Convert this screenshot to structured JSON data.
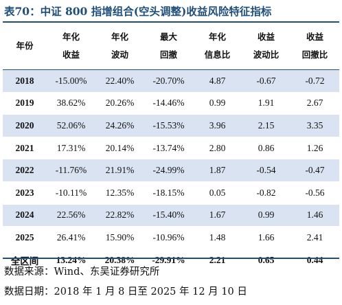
{
  "title": "表70：中证 800 指增组合(空头调整)收益风险特征指标",
  "columns": [
    {
      "line1": "年份",
      "line2": ""
    },
    {
      "line1": "年化",
      "line2": "收益"
    },
    {
      "line1": "年化",
      "line2": "波动"
    },
    {
      "line1": "最大",
      "line2": "回撤"
    },
    {
      "line1": "年化",
      "line2": "信息比"
    },
    {
      "line1": "收益",
      "line2": "波动比"
    },
    {
      "line1": "收益",
      "line2": "回撤比"
    }
  ],
  "rows": [
    [
      "2018",
      "-15.00%",
      "22.40%",
      "-20.70%",
      "4.87",
      "-0.67",
      "-0.72"
    ],
    [
      "2019",
      "38.62%",
      "20.26%",
      "-14.46%",
      "0.99",
      "1.91",
      "2.67"
    ],
    [
      "2020",
      "52.06%",
      "24.26%",
      "-15.53%",
      "3.96",
      "2.15",
      "3.35"
    ],
    [
      "2021",
      "17.31%",
      "20.14%",
      "-13.74%",
      "2.80",
      "0.86",
      "1.26"
    ],
    [
      "2022",
      "-11.76%",
      "21.91%",
      "-24.99%",
      "1.87",
      "-0.54",
      "-0.47"
    ],
    [
      "2023",
      "-10.11%",
      "12.35%",
      "-18.15%",
      "0.05",
      "-0.82",
      "-0.56"
    ],
    [
      "2024",
      "22.56%",
      "22.82%",
      "-15.40%",
      "1.67",
      "0.99",
      "1.46"
    ],
    [
      "2025",
      "26.41%",
      "15.90%",
      "-10.96%",
      "1.48",
      "1.66",
      "2.41"
    ]
  ],
  "total": [
    "全区间",
    "13.24%",
    "20.38%",
    "-29.91%",
    "2.21",
    "0.65",
    "0.44"
  ],
  "source": "数据来源：Wind、东吴证券研究所",
  "date": "数据日期：2018 年 1 月 8 日至 2025 年 12 月 10 日",
  "colors": {
    "accent": "#1f4e79",
    "row_shade": "#dae3f1"
  }
}
